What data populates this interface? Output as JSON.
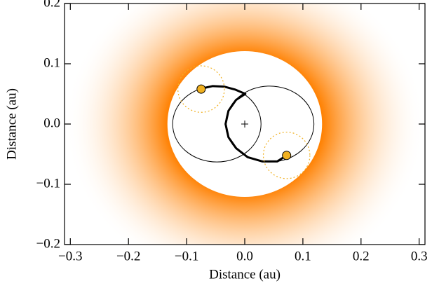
{
  "chart_data": {
    "type": "orbit",
    "x_label": "Distance (au)",
    "y_label": "Distance (au)",
    "xlim": [
      -0.31,
      0.31
    ],
    "ylim": [
      -0.2,
      0.2
    ],
    "xticks": [
      {
        "value": -0.3,
        "label": "−0.3"
      },
      {
        "value": -0.2,
        "label": "−0.2"
      },
      {
        "value": -0.1,
        "label": "−0.1"
      },
      {
        "value": 0,
        "label": "0.0"
      },
      0.1,
      0.2,
      0.3
    ],
    "yticks": [
      {
        "value": -0.2,
        "label": "−0.2"
      },
      {
        "value": -0.1,
        "label": "−0.1"
      },
      {
        "value": 0,
        "label": "0.0"
      },
      0.1,
      0.2
    ],
    "habitable_zone": {
      "color": "#ff8000",
      "inner": [
        0.133,
        0.121
      ],
      "outer": [
        0.31,
        0.27
      ]
    },
    "orbits": [
      {
        "center": [
          -0.048,
          0
        ],
        "radii": [
          0.076,
          0.063
        ]
      },
      {
        "center": [
          0.043,
          0
        ],
        "radii": [
          0.076,
          0.063
        ]
      }
    ],
    "trail": {
      "x": [
        -0.074,
        -0.055,
        -0.035,
        -0.016,
        0.001,
        -0.015,
        -0.028,
        -0.033,
        -0.028,
        -0.015,
        0.005,
        0.03,
        0.056,
        0.072
      ],
      "y": [
        0.059,
        0.063,
        0.062,
        0.057,
        0.05,
        0.04,
        0.022,
        0,
        -0.022,
        -0.04,
        -0.055,
        -0.062,
        -0.062,
        -0.052
      ]
    },
    "planets": {
      "x": [
        -0.075,
        0.072
      ],
      "y": [
        0.058,
        -0.052
      ],
      "color": "#f0b020",
      "hill_radius": 0.04
    },
    "star": {
      "x": 0,
      "y": 0
    }
  }
}
